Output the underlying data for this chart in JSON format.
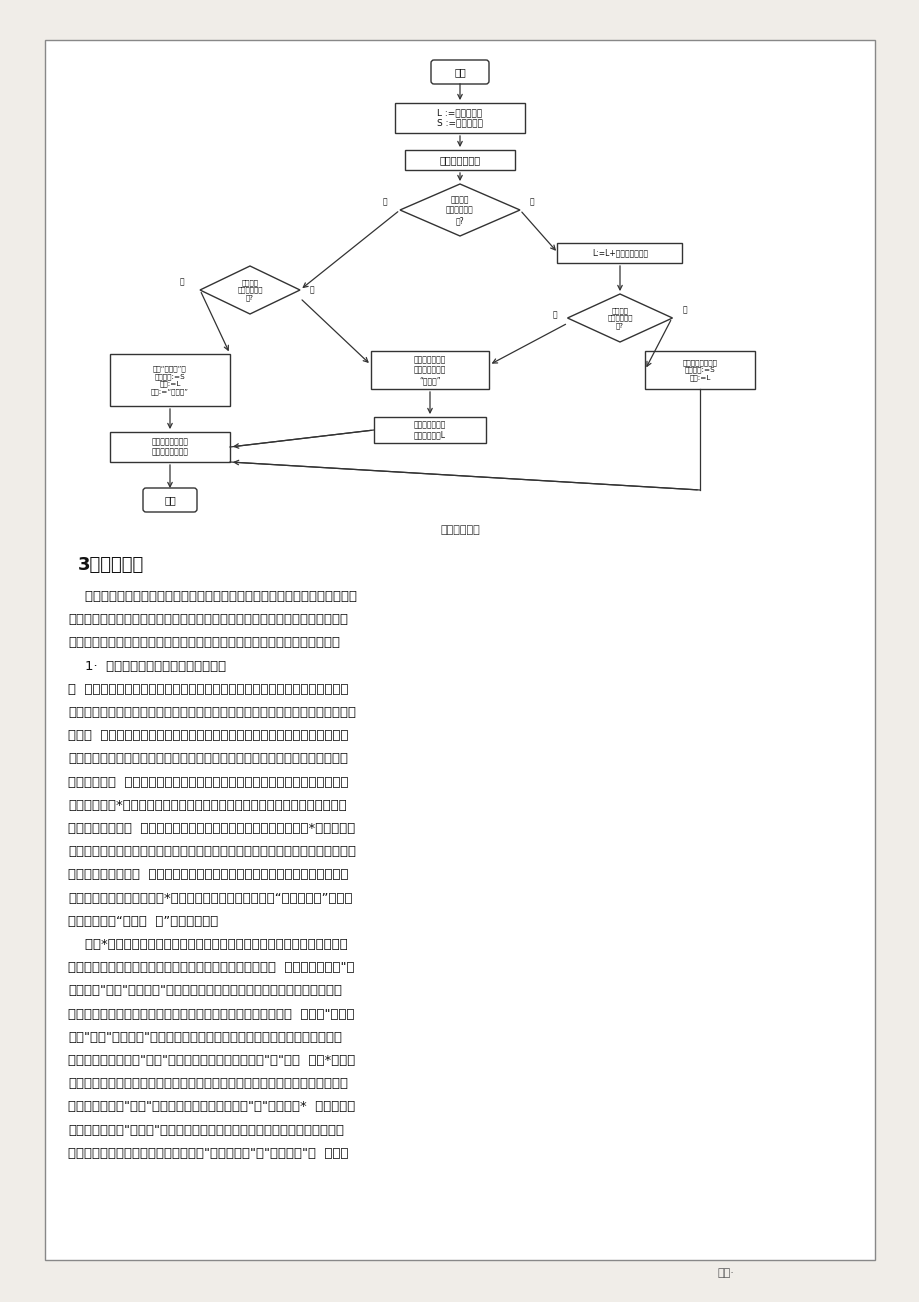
{
  "page_bg": "#f0ede8",
  "content_bg": "#ffffff",
  "border_color": "#888888",
  "text_color": "#1a1a1a",
  "title_flowchart": "主存回收算法",
  "section_heading": "3）实现步骤",
  "body_text": [
    "    实现动态分区的分配与回收，主要考虑三个问题：第一，设计记录主存使用情",
    "况的数据表格，用来记录空闲区和作业占用的区域；第二，在设计的数据表格根",
    "底上设计主存分配算法；第三，在设计的数据表格根底上设计主存回收算法。",
    "    1·  设计记录主存使用情况的数据表格",
    "由  于动态分区的大小是由作业需求量决定的，故分区的长度是预先不固定的，",
    "且分区的个数也随主存分配和回收变动。总之，所有分区情况随时可能发生变化，",
    "数据表  格的设计必须和这个特点相适应。由于分区长度不同，因此设计的表格",
    "应该包括分区在主存中的起始地址和长度。由于分配时，空闲区有时会变成两个",
    "分区：空闲区  和已分分区，回收主存分区时，可能会合并空闲区，这样如果整",
    "个主存采用一*表格记录已分分区和空闲区，就会使表格操作繁琝。主存分配时",
    "查找空闲区进展分  配，然后填写已分配区表，主要操作在空闲区；*个作业执行",
    "完后，将该分区贬词空闲区，并将其与相邻的空闲区合并，主要操作也在空闲区。",
    "由此可见，主存的分  配与回收主要时对空闲区的操作。这样为了便于对主存空",
    "间的分配与回收，就建立两*分区表记录主存的使用情况：“已分配区表”记录作",
    "业占用分区，“空闲区  表”记录空闲区。",
    "    这两*表的实现方法一般由两种：链表形式、顺序表形式。在本实验中，采",
    "用顺序表形式，用数组模拟。由于顺序表的长度必须提前固  定，所以无论是\"已",
    "分配区表\"还是\"空闲区表\"都必须事先确定长度。它们的长度必须是系统可能",
    "的最大项数，系统运行过程中才不会出错，因此在多数情况下，  无论是\"已分配",
    "表区\"还是\"空闲区表\"都是空闲栏目。已分配区表中除了分区起始地址、长度",
    "外，也至少还有一项\"标志\"，如果是空闲栏目，内容为\"空\"，如  果为*个作业",
    "占用分区的登记项，内容为该作业的作业名；空闲区表除了分区起始地址、长度",
    "外，也要有一项\"标志\"，如果是空闲栏目，内容为\"空\"，如果为*  个空闲区的",
    "登记项，内容为\"未分配\"。在实际系统中，这两个表格的内容可能还要多，实",
    "验中仅仅使用上述必须的数据。为此，\"已分配区表\"和\"空闲区表\"在  实验中"
  ],
  "footer_text": "优选·"
}
